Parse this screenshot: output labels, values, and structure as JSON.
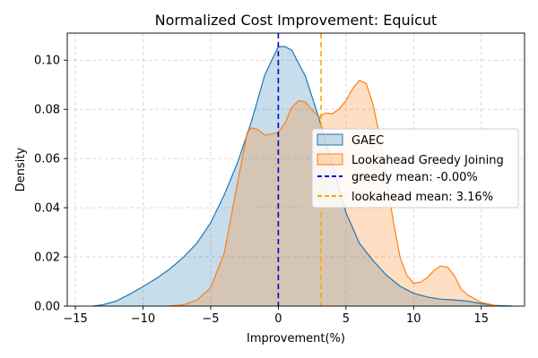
{
  "chart_data": {
    "type": "area",
    "title": "Normalized Cost Improvement: Equicut",
    "xlabel": "Improvement(%)",
    "ylabel": "Density",
    "xlim": [
      -15.6,
      18.2
    ],
    "ylim": [
      0,
      0.111
    ],
    "xticks": [
      -15,
      -10,
      -5,
      0,
      5,
      10,
      15
    ],
    "xtick_labels": [
      "−15",
      "−10",
      "−5",
      "0",
      "5",
      "10",
      "15"
    ],
    "yticks": [
      0,
      0.02,
      0.04,
      0.06,
      0.08,
      0.1
    ],
    "ytick_labels": [
      "0.00",
      "0.02",
      "0.04",
      "0.06",
      "0.08",
      "0.10"
    ],
    "grid": true,
    "legend_position": "center-right",
    "series": [
      {
        "name": "GAEC",
        "kind": "kde",
        "color": "#1f77b4",
        "x": [
          -13.7,
          -13,
          -12,
          -11,
          -10,
          -9,
          -8,
          -7,
          -6,
          -5,
          -4,
          -3,
          -2,
          -1,
          0,
          0.5,
          1,
          2,
          3,
          4,
          5,
          6,
          7,
          8,
          9,
          10,
          11,
          12,
          13,
          14,
          15,
          16,
          17.3
        ],
        "y": [
          0.0,
          0.0005,
          0.002,
          0.0048,
          0.0079,
          0.0113,
          0.0152,
          0.0199,
          0.0257,
          0.0339,
          0.0452,
          0.0585,
          0.0748,
          0.094,
          0.1055,
          0.1055,
          0.104,
          0.0935,
          0.0765,
          0.0575,
          0.038,
          0.0255,
          0.0185,
          0.0125,
          0.0081,
          0.0052,
          0.0037,
          0.0028,
          0.0025,
          0.002,
          0.001,
          0.0003,
          0.0
        ]
      },
      {
        "name": "Lookahead Greedy Joining",
        "kind": "kde",
        "color": "#ff7f0e",
        "x": [
          -8.2,
          -7,
          -6,
          -5,
          -4,
          -3,
          -2.3,
          -2,
          -1.5,
          -1,
          0,
          0.5,
          1,
          1.5,
          2,
          2.5,
          3,
          3.5,
          4,
          4.5,
          5,
          5.5,
          6,
          6.5,
          7,
          7.5,
          8,
          8.5,
          9,
          9.5,
          10,
          10.5,
          11,
          11.5,
          12,
          12.5,
          13,
          13.5,
          14,
          15,
          16,
          16.2
        ],
        "y": [
          0.0,
          0.0005,
          0.0025,
          0.0075,
          0.0215,
          0.0505,
          0.0705,
          0.0725,
          0.0718,
          0.0695,
          0.0705,
          0.0745,
          0.0808,
          0.0835,
          0.083,
          0.0798,
          0.077,
          0.0785,
          0.0782,
          0.0802,
          0.0835,
          0.0885,
          0.0918,
          0.0905,
          0.082,
          0.0688,
          0.0515,
          0.0345,
          0.0198,
          0.0125,
          0.0093,
          0.0097,
          0.0115,
          0.0145,
          0.0163,
          0.0158,
          0.0125,
          0.007,
          0.0045,
          0.0015,
          0.0003,
          0.0
        ]
      }
    ],
    "reference_lines": [
      {
        "name": "greedy mean: -0.00%",
        "x": -0.0,
        "color": "#0000cc",
        "style": "dashed"
      },
      {
        "name": "lookahead mean: 3.16%",
        "x": 3.16,
        "color": "#ffa500",
        "style": "dashed"
      }
    ]
  }
}
